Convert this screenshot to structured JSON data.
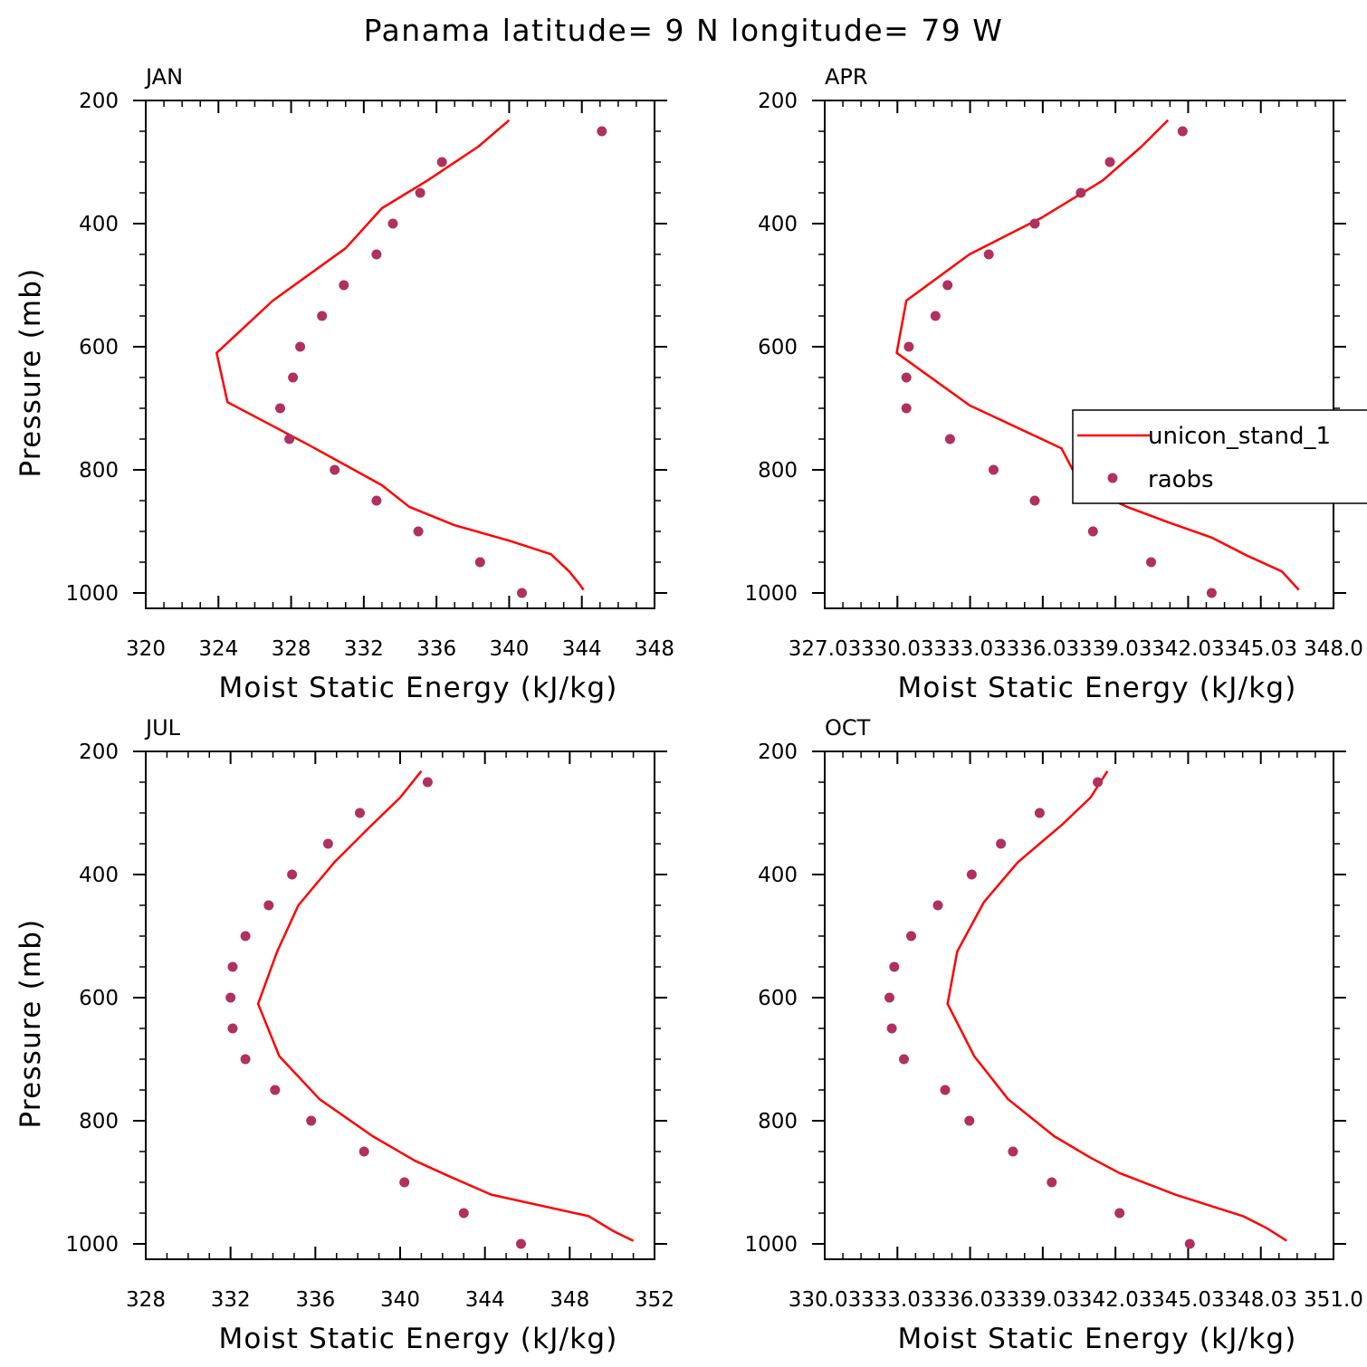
{
  "title": "Panama  latitude= 9 N longitude= 79 W",
  "colors": {
    "model": "#ff0000",
    "raobs": "#b03060",
    "axes": "#000000"
  },
  "legend": {
    "placement": "right-middle of APR panel",
    "entries": [
      "unicon_stand_1",
      "raobs"
    ]
  },
  "chart_data": [
    {
      "type": "line",
      "title": "JAN",
      "xlabel": "Moist Static Energy (kJ/kg)",
      "ylabel": "Pressure (mb)",
      "xlim": [
        320,
        348
      ],
      "ylim": [
        200,
        1025
      ],
      "y_inverted": true,
      "xticks": [
        "320",
        "324",
        "328",
        "332",
        "336",
        "340",
        "344",
        "348"
      ],
      "yticks": [
        "200",
        "400",
        "600",
        "800",
        "1000"
      ],
      "series": [
        {
          "name": "unicon_stand_1",
          "kind": "line",
          "x": [
            340.0,
            338.3,
            335.5,
            333.0,
            331.0,
            327.0,
            323.9,
            324.5,
            329.0,
            333.0,
            334.5,
            337.0,
            340.0,
            342.3,
            343.3,
            343.8,
            344.1
          ],
          "y": [
            232,
            275,
            330,
            375,
            440,
            525,
            610,
            690,
            760,
            825,
            860,
            890,
            915,
            937,
            965,
            983,
            995
          ]
        },
        {
          "name": "raobs",
          "kind": "scatter",
          "x": [
            345.1,
            336.3,
            335.1,
            333.6,
            332.7,
            330.9,
            329.7,
            328.5,
            328.1,
            327.4,
            327.9,
            330.4,
            332.7,
            335.0,
            338.4,
            340.7
          ],
          "y": [
            250,
            300,
            350,
            400,
            450,
            500,
            550,
            600,
            650,
            700,
            750,
            800,
            850,
            900,
            950,
            1000
          ]
        }
      ]
    },
    {
      "type": "line",
      "title": "APR",
      "xlabel": "Moist Static Energy (kJ/kg)",
      "ylabel": "",
      "xlim": [
        327.03,
        348.03
      ],
      "ylim": [
        200,
        1025
      ],
      "y_inverted": true,
      "xticks": [
        "327.03",
        "330.03",
        "333.03",
        "336.03",
        "339.03",
        "342.03",
        "345.03",
        "348.0"
      ],
      "yticks": [
        "200",
        "400",
        "600",
        "800",
        "1000"
      ],
      "series": [
        {
          "name": "unicon_stand_1",
          "kind": "line",
          "x": [
            341.2,
            340.1,
            338.5,
            336.0,
            333.0,
            330.4,
            330.0,
            333.0,
            336.8,
            337.6,
            339.5,
            341.2,
            343.0,
            344.5,
            345.9,
            346.6
          ],
          "y": [
            232,
            275,
            330,
            390,
            450,
            525,
            610,
            695,
            765,
            825,
            860,
            885,
            910,
            940,
            965,
            995
          ]
        },
        {
          "name": "raobs",
          "kind": "scatter",
          "x": [
            341.8,
            338.8,
            337.6,
            335.7,
            333.8,
            332.1,
            331.6,
            330.5,
            330.4,
            330.4,
            332.2,
            334.0,
            335.7,
            338.1,
            340.5,
            343.0
          ],
          "y": [
            250,
            300,
            350,
            400,
            450,
            500,
            550,
            600,
            650,
            700,
            750,
            800,
            850,
            900,
            950,
            1000
          ]
        }
      ]
    },
    {
      "type": "line",
      "title": "JUL",
      "xlabel": "Moist Static Energy (kJ/kg)",
      "ylabel": "Pressure (mb)",
      "xlim": [
        328,
        352
      ],
      "ylim": [
        200,
        1025
      ],
      "y_inverted": true,
      "xticks": [
        "328",
        "332",
        "336",
        "340",
        "344",
        "348",
        "352"
      ],
      "yticks": [
        "200",
        "400",
        "600",
        "800",
        "1000"
      ],
      "series": [
        {
          "name": "unicon_stand_1",
          "kind": "line",
          "x": [
            341.0,
            340.0,
            338.5,
            336.9,
            335.2,
            334.2,
            333.3,
            334.3,
            336.2,
            338.7,
            340.7,
            342.3,
            344.3,
            348.9,
            350.1,
            351.0
          ],
          "y": [
            232,
            275,
            325,
            380,
            450,
            525,
            610,
            695,
            765,
            825,
            865,
            890,
            920,
            955,
            980,
            995
          ]
        },
        {
          "name": "raobs",
          "kind": "scatter",
          "x": [
            341.3,
            338.1,
            336.6,
            334.9,
            333.8,
            332.7,
            332.1,
            332.0,
            332.1,
            332.7,
            334.1,
            335.8,
            338.3,
            340.2,
            343.0,
            345.7
          ],
          "y": [
            250,
            300,
            350,
            400,
            450,
            500,
            550,
            600,
            650,
            700,
            750,
            800,
            850,
            900,
            950,
            1000
          ]
        }
      ]
    },
    {
      "type": "line",
      "title": "OCT",
      "xlabel": "Moist Static Energy (kJ/kg)",
      "ylabel": "",
      "xlim": [
        330.03,
        351.03
      ],
      "ylim": [
        200,
        1025
      ],
      "y_inverted": true,
      "xticks": [
        "330.03",
        "333.03",
        "336.03",
        "339.03",
        "342.03",
        "345.03",
        "348.03",
        "351.0"
      ],
      "yticks": [
        "200",
        "400",
        "600",
        "800",
        "1000"
      ],
      "series": [
        {
          "name": "unicon_stand_1",
          "kind": "line",
          "x": [
            341.7,
            341.0,
            339.8,
            338.0,
            336.6,
            335.5,
            335.1,
            336.2,
            337.6,
            339.5,
            341.0,
            342.2,
            344.5,
            347.3,
            348.3,
            349.1
          ],
          "y": [
            232,
            275,
            320,
            380,
            445,
            525,
            610,
            695,
            765,
            825,
            860,
            885,
            920,
            955,
            975,
            995
          ]
        },
        {
          "name": "raobs",
          "kind": "scatter",
          "x": [
            341.3,
            338.9,
            337.3,
            336.1,
            334.7,
            333.6,
            332.9,
            332.7,
            332.8,
            333.3,
            335.0,
            336.0,
            337.8,
            339.4,
            342.2,
            345.1
          ],
          "y": [
            250,
            300,
            350,
            400,
            450,
            500,
            550,
            600,
            650,
            700,
            750,
            800,
            850,
            900,
            950,
            1000
          ]
        }
      ]
    }
  ]
}
